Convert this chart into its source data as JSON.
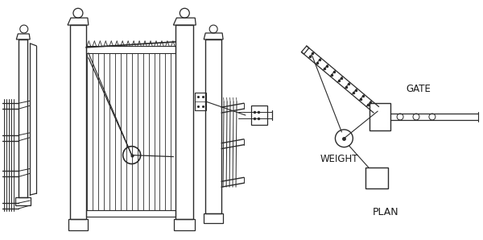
{
  "background_color": "#ffffff",
  "gate_label": "GATE",
  "weight_label": "WEIGHT",
  "plan_label": "PLAN",
  "line_color": "#2a2a2a",
  "text_color": "#1a1a1a",
  "label_fontsize": 8.5,
  "plan_fontsize": 9
}
